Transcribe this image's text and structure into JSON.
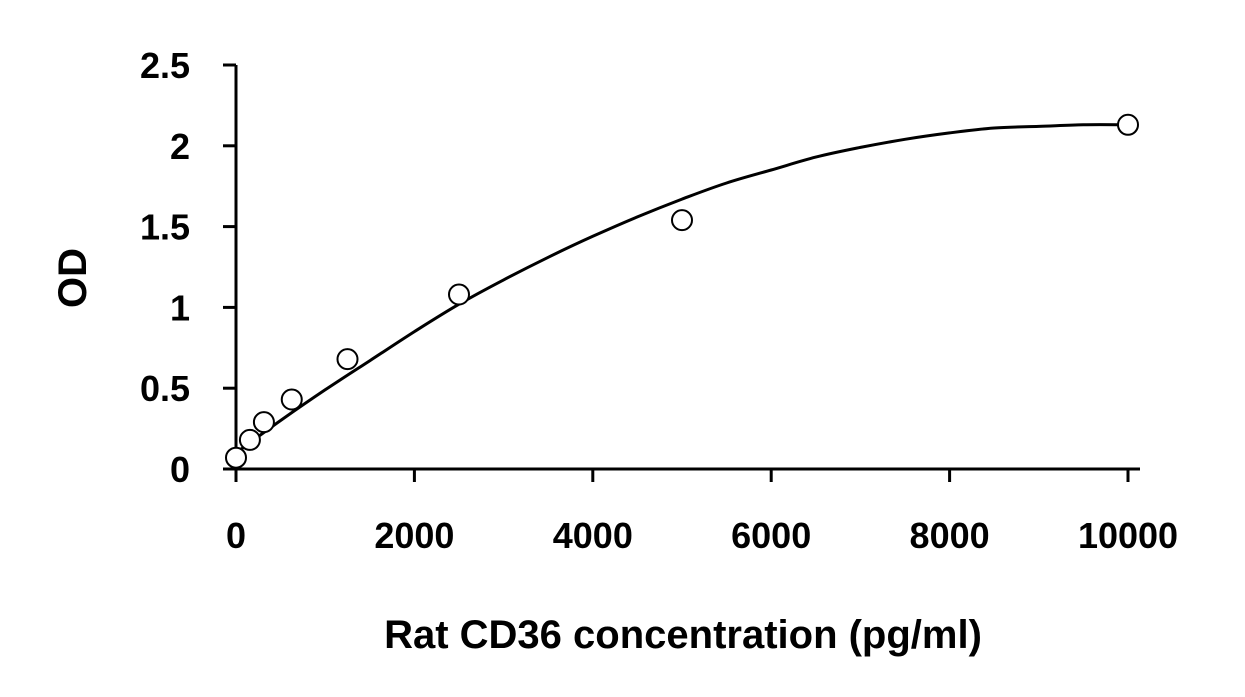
{
  "chart_data": {
    "type": "scatter",
    "title": "",
    "xlabel": "Rat CD36 concentration (pg/ml)",
    "ylabel": "OD",
    "xlim": [
      0,
      10000
    ],
    "ylim": [
      0,
      2.5
    ],
    "x_ticks": [
      0,
      2000,
      4000,
      6000,
      8000,
      10000
    ],
    "x_tick_labels": [
      "0",
      "2000",
      "4000",
      "6000",
      "8000",
      "10000"
    ],
    "y_ticks": [
      0,
      0.5,
      1,
      1.5,
      2,
      2.5
    ],
    "y_tick_labels": [
      "0",
      "0.5",
      "1",
      "1.5",
      "2",
      "2.5"
    ],
    "grid": false,
    "legend": "none",
    "series": [
      {
        "marker": "open-circle",
        "x": [
          0,
          156,
          313,
          625,
          1250,
          2500,
          5000,
          10000
        ],
        "y": [
          0.07,
          0.18,
          0.29,
          0.43,
          0.68,
          1.08,
          1.54,
          2.13
        ]
      }
    ],
    "fit_curve": {
      "type": "polynomial",
      "x": [
        0,
        500,
        1000,
        1500,
        2000,
        2500,
        3000,
        3500,
        4000,
        4500,
        5000,
        5500,
        6000,
        6500,
        7000,
        7500,
        8000,
        8500,
        9000,
        9500,
        10000
      ],
      "y": [
        0.1,
        0.3,
        0.49,
        0.67,
        0.85,
        1.02,
        1.17,
        1.31,
        1.44,
        1.56,
        1.67,
        1.77,
        1.85,
        1.93,
        1.99,
        2.04,
        2.08,
        2.11,
        2.12,
        2.13,
        2.13
      ]
    },
    "colors": {
      "line": "#000000",
      "marker_fill": "#ffffff",
      "background": "#ffffff"
    }
  }
}
